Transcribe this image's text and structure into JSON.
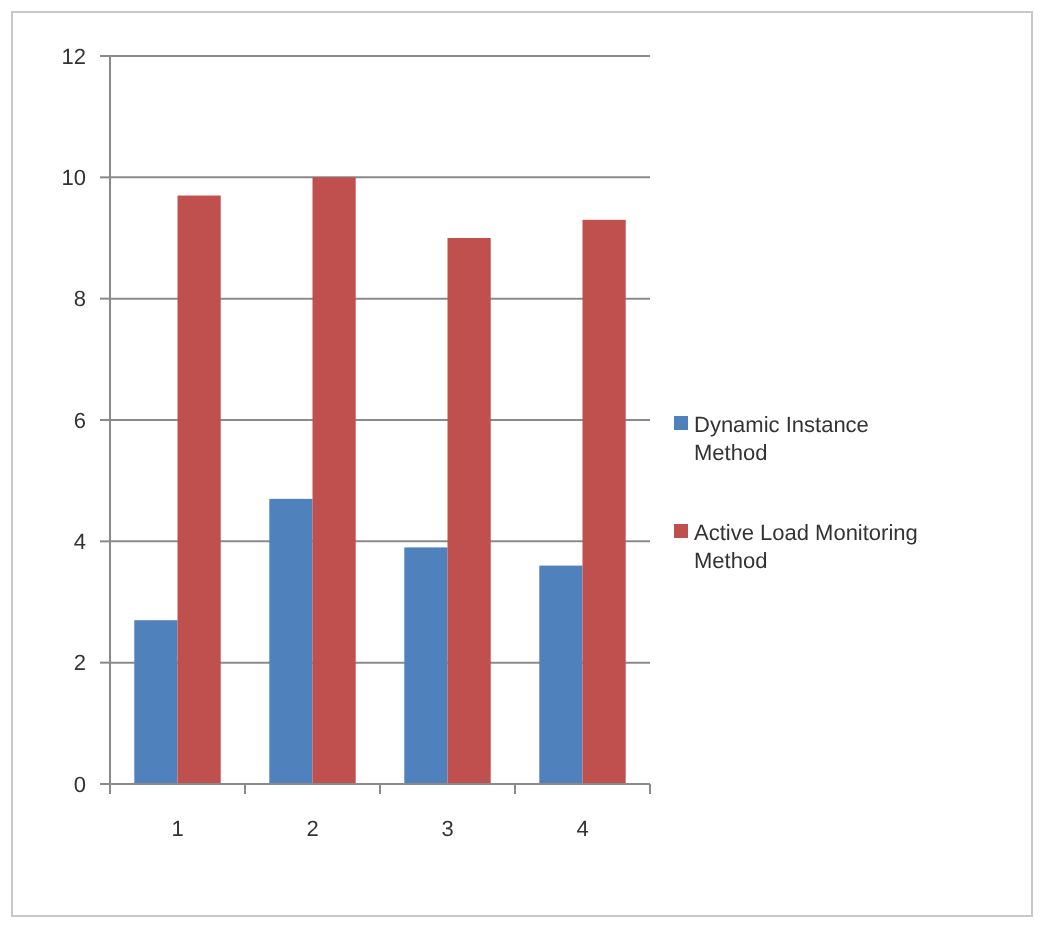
{
  "chart_data": {
    "type": "bar",
    "categories": [
      "1",
      "2",
      "3",
      "4"
    ],
    "series": [
      {
        "name": "Dynamic Instance Method",
        "color": "#4f81bd",
        "values": [
          2.7,
          4.7,
          3.9,
          3.6
        ]
      },
      {
        "name": "Active Load Monitoring Method",
        "color": "#c0504d",
        "values": [
          9.7,
          10,
          9,
          9.3
        ]
      }
    ],
    "ylim": [
      0,
      12
    ],
    "yticks": [
      0,
      2,
      4,
      6,
      8,
      10,
      12
    ],
    "grid": "y",
    "legend": "right"
  }
}
